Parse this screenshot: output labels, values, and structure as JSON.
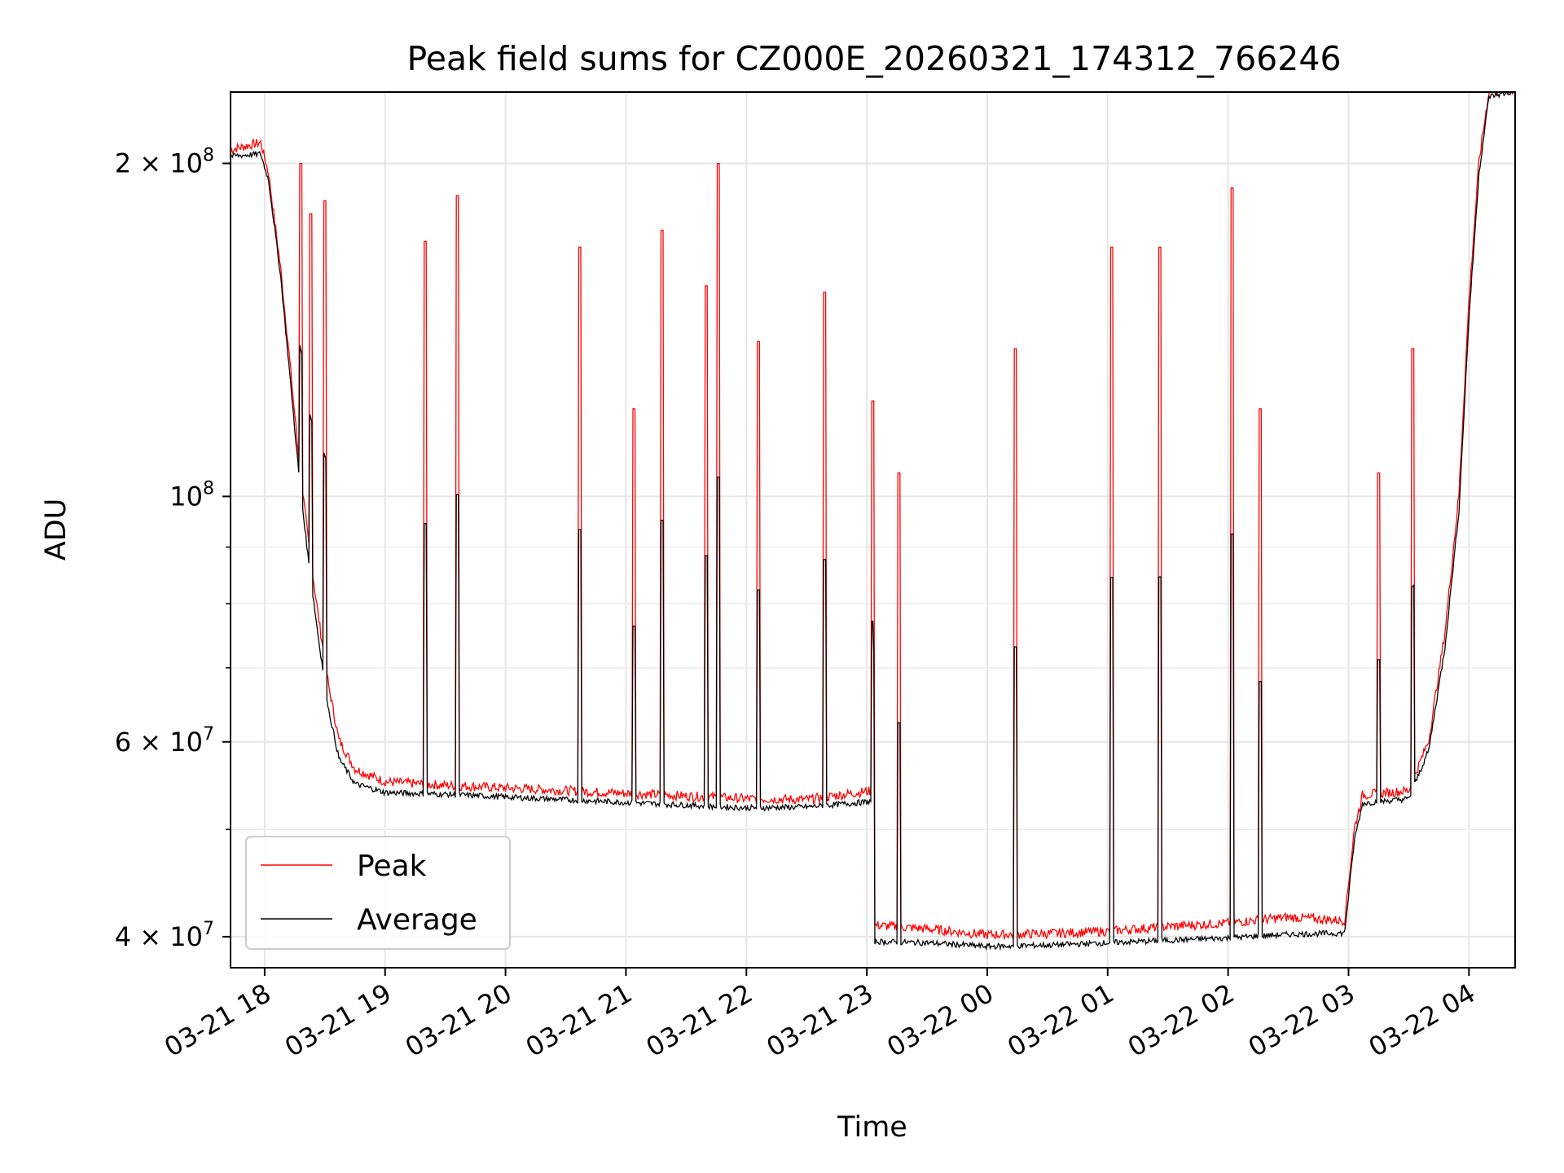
{
  "chart_data": {
    "type": "line",
    "title": "Peak field sums for CZ000E_20260321_174312_766246",
    "xlabel": "Time",
    "ylabel": "ADU",
    "y_scale": "log",
    "xlim": [
      "2026-03-21 17:43",
      "2026-03-22 04:23"
    ],
    "ylim": [
      37500000,
      232000000
    ],
    "grid": true,
    "legend_position": "lower-left",
    "x_ticks": [
      {
        "value": "2026-03-21 18:00",
        "label": "03-21 18"
      },
      {
        "value": "2026-03-21 19:00",
        "label": "03-21 19"
      },
      {
        "value": "2026-03-21 20:00",
        "label": "03-21 20"
      },
      {
        "value": "2026-03-21 21:00",
        "label": "03-21 21"
      },
      {
        "value": "2026-03-21 22:00",
        "label": "03-21 22"
      },
      {
        "value": "2026-03-21 23:00",
        "label": "03-21 23"
      },
      {
        "value": "2026-03-22 00:00",
        "label": "03-22 00"
      },
      {
        "value": "2026-03-22 01:00",
        "label": "03-22 01"
      },
      {
        "value": "2026-03-22 02:00",
        "label": "03-22 02"
      },
      {
        "value": "2026-03-22 03:00",
        "label": "03-22 03"
      },
      {
        "value": "2026-03-22 04:00",
        "label": "03-22 04"
      }
    ],
    "y_major_ticks": [
      {
        "value": 40000000,
        "label": "4 × 10",
        "exp": "7"
      },
      {
        "value": 60000000,
        "label": "6 × 10",
        "exp": "7"
      },
      {
        "value": 100000000,
        "label": "10",
        "exp": "8"
      },
      {
        "value": 200000000,
        "label": "2 × 10",
        "exp": "8"
      }
    ],
    "y_minor_ticks": [
      50000000,
      70000000,
      80000000,
      90000000
    ],
    "series": [
      {
        "name": "Peak",
        "color": "#ff0000",
        "baseline": [
          [
            "2026-03-21 17:43",
            205000000
          ],
          [
            "2026-03-21 17:58",
            208000000
          ],
          [
            "2026-03-21 18:02",
            195000000
          ],
          [
            "2026-03-21 18:08",
            160000000
          ],
          [
            "2026-03-21 18:12",
            135000000
          ],
          [
            "2026-03-21 18:17",
            108000000
          ],
          [
            "2026-03-21 18:22",
            90000000
          ],
          [
            "2026-03-21 18:27",
            77000000
          ],
          [
            "2026-03-21 18:32",
            67000000
          ],
          [
            "2026-03-21 18:37",
            60000000
          ],
          [
            "2026-03-21 18:45",
            56500000
          ],
          [
            "2026-03-21 19:00",
            55000000
          ],
          [
            "2026-03-21 19:30",
            54600000
          ],
          [
            "2026-03-21 20:00",
            54300000
          ],
          [
            "2026-03-21 20:30",
            54000000
          ],
          [
            "2026-03-21 21:00",
            53700000
          ],
          [
            "2026-03-21 21:30",
            53400000
          ],
          [
            "2026-03-21 22:00",
            53100000
          ],
          [
            "2026-03-21 22:30",
            53000000
          ],
          [
            "2026-03-21 23:03",
            54000000
          ],
          [
            "2026-03-21 23:04",
            40800000
          ],
          [
            "2026-03-21 23:30",
            40500000
          ],
          [
            "2026-03-22 00:00",
            40000000
          ],
          [
            "2026-03-22 00:30",
            40100000
          ],
          [
            "2026-03-22 01:00",
            40300000
          ],
          [
            "2026-03-22 01:30",
            40700000
          ],
          [
            "2026-03-22 02:00",
            41000000
          ],
          [
            "2026-03-22 02:30",
            41500000
          ],
          [
            "2026-03-22 02:58",
            41200000
          ],
          [
            "2026-03-22 03:03",
            50000000
          ],
          [
            "2026-03-22 03:07",
            53500000
          ],
          [
            "2026-03-22 03:30",
            54000000
          ],
          [
            "2026-03-22 03:40",
            60000000
          ],
          [
            "2026-03-22 03:48",
            75000000
          ],
          [
            "2026-03-22 03:55",
            100000000
          ],
          [
            "2026-03-22 04:00",
            150000000
          ],
          [
            "2026-03-22 04:05",
            200000000
          ],
          [
            "2026-03-22 04:10",
            232000000
          ],
          [
            "2026-03-22 04:23",
            232000000
          ]
        ],
        "spikes": [
          [
            "2026-03-21 18:18",
            200000000
          ],
          [
            "2026-03-21 18:23",
            180000000
          ],
          [
            "2026-03-21 18:30",
            185000000
          ],
          [
            "2026-03-21 19:20",
            170000000
          ],
          [
            "2026-03-21 19:36",
            187000000
          ],
          [
            "2026-03-21 20:37",
            168000000
          ],
          [
            "2026-03-21 21:04",
            120000000
          ],
          [
            "2026-03-21 21:18",
            174000000
          ],
          [
            "2026-03-21 21:40",
            155000000
          ],
          [
            "2026-03-21 21:46",
            200000000
          ],
          [
            "2026-03-21 22:06",
            138000000
          ],
          [
            "2026-03-21 22:39",
            153000000
          ],
          [
            "2026-03-21 23:03",
            122000000
          ],
          [
            "2026-03-21 23:16",
            105000000
          ],
          [
            "2026-03-22 00:14",
            136000000
          ],
          [
            "2026-03-22 01:02",
            168000000
          ],
          [
            "2026-03-22 01:26",
            168000000
          ],
          [
            "2026-03-22 02:02",
            190000000
          ],
          [
            "2026-03-22 02:16",
            120000000
          ],
          [
            "2026-03-22 03:15",
            105000000
          ],
          [
            "2026-03-22 03:32",
            136000000
          ]
        ]
      },
      {
        "name": "Average",
        "color": "#000000",
        "baseline": [
          [
            "2026-03-21 17:43",
            203000000
          ],
          [
            "2026-03-21 17:58",
            204000000
          ],
          [
            "2026-03-21 18:02",
            193000000
          ],
          [
            "2026-03-21 18:08",
            158000000
          ],
          [
            "2026-03-21 18:12",
            132000000
          ],
          [
            "2026-03-21 18:17",
            105000000
          ],
          [
            "2026-03-21 18:22",
            87000000
          ],
          [
            "2026-03-21 18:27",
            74000000
          ],
          [
            "2026-03-21 18:32",
            64000000
          ],
          [
            "2026-03-21 18:37",
            58000000
          ],
          [
            "2026-03-21 18:45",
            55000000
          ],
          [
            "2026-03-21 19:00",
            54000000
          ],
          [
            "2026-03-21 19:30",
            53800000
          ],
          [
            "2026-03-21 20:00",
            53500000
          ],
          [
            "2026-03-21 20:30",
            53200000
          ],
          [
            "2026-03-21 21:00",
            52900000
          ],
          [
            "2026-03-21 21:30",
            52600000
          ],
          [
            "2026-03-21 22:00",
            52300000
          ],
          [
            "2026-03-21 22:30",
            52400000
          ],
          [
            "2026-03-21 23:03",
            53000000
          ],
          [
            "2026-03-21 23:04",
            39600000
          ],
          [
            "2026-03-21 23:30",
            39500000
          ],
          [
            "2026-03-22 00:00",
            39200000
          ],
          [
            "2026-03-22 00:30",
            39300000
          ],
          [
            "2026-03-22 01:00",
            39500000
          ],
          [
            "2026-03-22 01:30",
            39700000
          ],
          [
            "2026-03-22 02:00",
            39900000
          ],
          [
            "2026-03-22 02:30",
            40200000
          ],
          [
            "2026-03-22 02:58",
            40300000
          ],
          [
            "2026-03-22 03:03",
            49000000
          ],
          [
            "2026-03-22 03:07",
            52800000
          ],
          [
            "2026-03-22 03:30",
            53300000
          ],
          [
            "2026-03-22 03:40",
            59000000
          ],
          [
            "2026-03-22 03:48",
            73000000
          ],
          [
            "2026-03-22 03:55",
            97000000
          ],
          [
            "2026-03-22 04:00",
            145000000
          ],
          [
            "2026-03-22 04:05",
            196000000
          ],
          [
            "2026-03-22 04:10",
            230000000
          ],
          [
            "2026-03-22 04:23",
            232000000
          ]
        ]
      }
    ]
  }
}
